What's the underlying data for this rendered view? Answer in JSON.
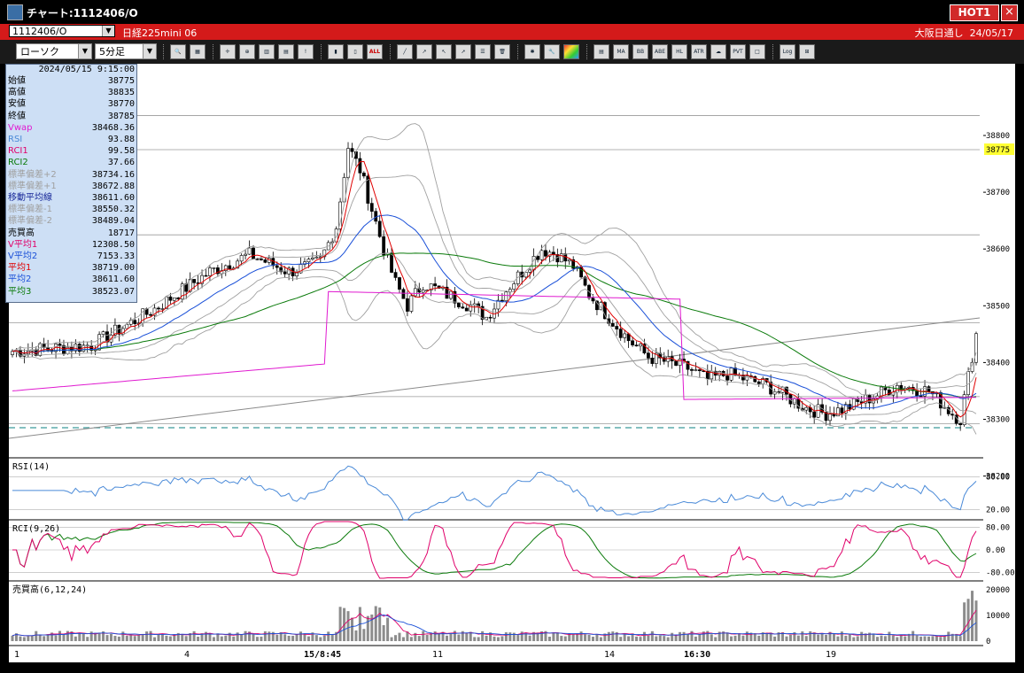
{
  "window": {
    "title": "チャート:1112406/O",
    "hot_badge": "HOT1",
    "close_label": "×"
  },
  "symbol_bar": {
    "code": "1112406/O",
    "name": "日経225mini 06",
    "session": "大阪日通し",
    "date": "24/05/17"
  },
  "toolbar": {
    "chart_type": "ローソク",
    "interval": "5分足",
    "text_buttons": [
      "ALL",
      "MA",
      "BB",
      "ABE",
      "HL",
      "ATR",
      "PVT",
      "Log"
    ]
  },
  "info_panel": {
    "datetime": "2024/05/15 9:15:00",
    "rows": [
      {
        "label": "始値",
        "value": "38775",
        "color": "#000000"
      },
      {
        "label": "高値",
        "value": "38835",
        "color": "#000000"
      },
      {
        "label": "安値",
        "value": "38770",
        "color": "#000000"
      },
      {
        "label": "終値",
        "value": "38785",
        "color": "#000000"
      },
      {
        "label": "Vwap",
        "value": "38468.36",
        "color": "#e01ad0"
      },
      {
        "label": "RSI",
        "value": "93.88",
        "color": "#4a8ad8"
      },
      {
        "label": "RCI1",
        "value": "99.58",
        "color": "#e0006a"
      },
      {
        "label": "RCI2",
        "value": "37.66",
        "color": "#0a7a0a"
      },
      {
        "label": "標準偏差+2",
        "value": "38734.16",
        "color": "#a0a0a0"
      },
      {
        "label": "標準偏差+1",
        "value": "38672.88",
        "color": "#a0a0a0"
      },
      {
        "label": "移動平均線",
        "value": "38611.60",
        "color": "#1a2a9a"
      },
      {
        "label": "標準偏差-1",
        "value": "38550.32",
        "color": "#a0a0a0"
      },
      {
        "label": "標準偏差-2",
        "value": "38489.04",
        "color": "#a0a0a0"
      },
      {
        "label": "売買高",
        "value": "18717",
        "color": "#000000"
      },
      {
        "label": "V平均1",
        "value": "12308.50",
        "color": "#e0006a"
      },
      {
        "label": "V平均2",
        "value": "7153.33",
        "color": "#1a50d8"
      },
      {
        "label": "平均1",
        "value": "38719.00",
        "color": "#e00000"
      },
      {
        "label": "平均2",
        "value": "38611.60",
        "color": "#1a50d8"
      },
      {
        "label": "平均3",
        "value": "38523.07",
        "color": "#0a7a0a"
      }
    ]
  },
  "price_axis": {
    "ticks": [
      "38800",
      "38700",
      "38600",
      "38500",
      "38400",
      "38300",
      "38200"
    ],
    "current_price": "38775"
  },
  "panels": {
    "rsi": {
      "label": "RSI(14)",
      "ticks": [
        "80.00",
        "20.00"
      ]
    },
    "rci": {
      "label": "RCI(9,26)",
      "ticks": [
        "80.00",
        "0.00",
        "-80.00"
      ]
    },
    "volume": {
      "label": "売買高(6,12,24)",
      "ticks": [
        "20000",
        "10000",
        "0"
      ]
    }
  },
  "time_axis": {
    "labels": [
      "1",
      "4",
      "15/8:45",
      "11",
      "14",
      "16:30",
      "19"
    ],
    "bold": [
      false,
      false,
      true,
      false,
      false,
      true,
      false
    ]
  },
  "colors": {
    "candle": "#000000",
    "ma_short": "#e00000",
    "ma_mid": "#1a50d8",
    "ma_long": "#0a7a0a",
    "vwap": "#e01ad0",
    "bollinger": "#a0a0a0",
    "rsi": "#4a8ad8",
    "rci_fast": "#e0006a",
    "rci_slow": "#0a7a0a",
    "volume_bar": "#8c8c8c",
    "highlight": "#ffff33",
    "symbol_bar": "#d41a1a"
  }
}
